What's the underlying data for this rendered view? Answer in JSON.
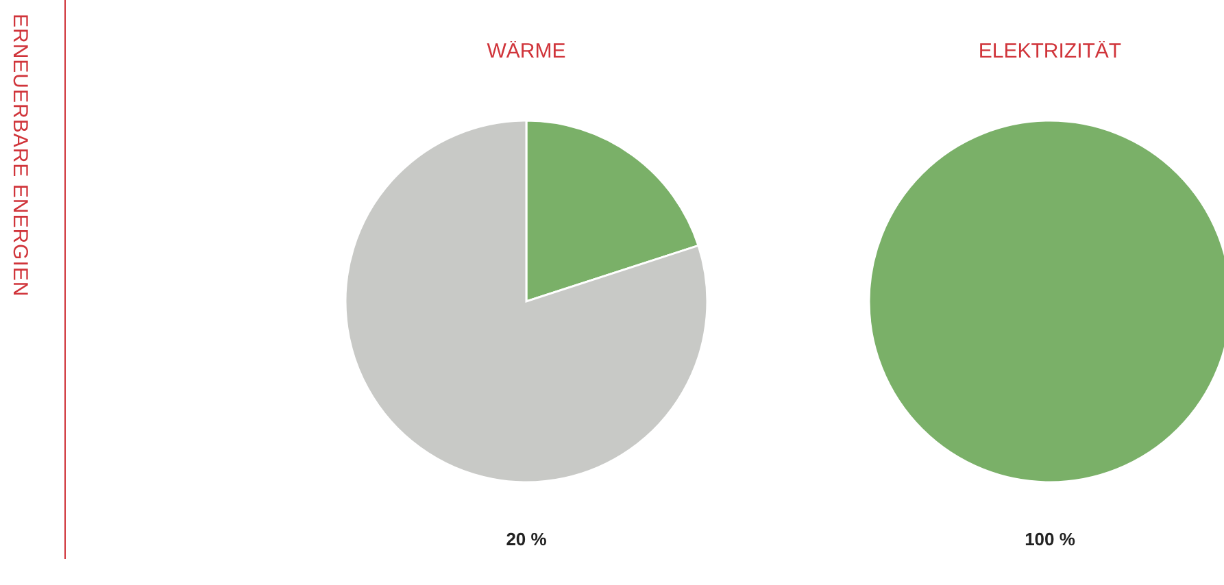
{
  "chart_data": [
    {
      "type": "pie",
      "title": "WÄRME",
      "ylabel": "ERNEUERBARE ENERGIEN",
      "categories": [
        null,
        null
      ],
      "values": [
        20,
        80
      ],
      "colors": [
        "#7ab068",
        "#c8c9c6"
      ],
      "annotations": [
        "20 %"
      ]
    },
    {
      "type": "pie",
      "title": "ELEKTRIZITÄT",
      "categories": [
        null
      ],
      "values": [
        100
      ],
      "colors": [
        "#7ab068"
      ],
      "annotations": [
        "100 %"
      ]
    }
  ]
}
